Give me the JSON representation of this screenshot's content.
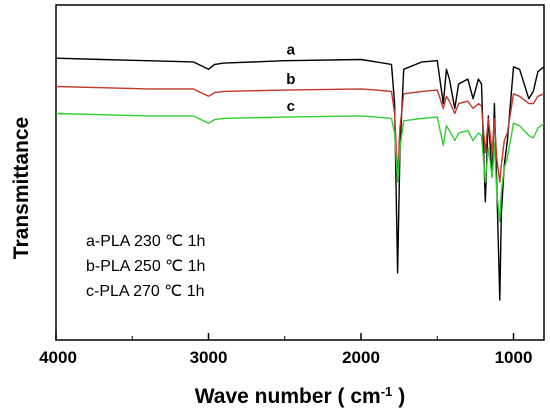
{
  "chart_data": {
    "type": "line",
    "xlabel": "Wave number (   cm",
    "xlabel_sup": "-1",
    "xlabel_close": ")",
    "ylabel": "Transmittance",
    "xlim": [
      4000,
      800
    ],
    "x_reversed": true,
    "xticks": [
      4000,
      3000,
      2000,
      1000
    ],
    "xtick_labels": [
      "4000",
      "3000",
      "2000",
      "1000"
    ],
    "grid": false,
    "legend_placement": "bottom-left",
    "legend": [
      {
        "text": "a-PLA 230 ℃ 1h"
      },
      {
        "text": "b-PLA 250 ℃ 1h"
      },
      {
        "text": "c-PLA 270 ℃ 1h"
      }
    ],
    "series": [
      {
        "name": "a",
        "color": "#000000",
        "points": [
          [
            4000,
            0.115
          ],
          [
            3700,
            0.12
          ],
          [
            3400,
            0.125
          ],
          [
            3100,
            0.13
          ],
          [
            3000,
            0.16
          ],
          [
            2960,
            0.14
          ],
          [
            2900,
            0.135
          ],
          [
            2500,
            0.125
          ],
          [
            2000,
            0.12
          ],
          [
            1900,
            0.13
          ],
          [
            1800,
            0.14
          ],
          [
            1780,
            0.3
          ],
          [
            1760,
            0.99
          ],
          [
            1745,
            0.5
          ],
          [
            1720,
            0.16
          ],
          [
            1600,
            0.13
          ],
          [
            1500,
            0.125
          ],
          [
            1460,
            0.3
          ],
          [
            1440,
            0.16
          ],
          [
            1420,
            0.2
          ],
          [
            1385,
            0.32
          ],
          [
            1360,
            0.22
          ],
          [
            1300,
            0.2
          ],
          [
            1265,
            0.28
          ],
          [
            1230,
            0.2
          ],
          [
            1210,
            0.22
          ],
          [
            1185,
            0.7
          ],
          [
            1165,
            0.35
          ],
          [
            1140,
            0.6
          ],
          [
            1125,
            0.3
          ],
          [
            1110,
            0.62
          ],
          [
            1090,
            1.1
          ],
          [
            1080,
            0.75
          ],
          [
            1060,
            0.55
          ],
          [
            1040,
            0.45
          ],
          [
            1000,
            0.15
          ],
          [
            960,
            0.16
          ],
          [
            900,
            0.28
          ],
          [
            870,
            0.25
          ],
          [
            840,
            0.17
          ],
          [
            800,
            0.15
          ]
        ]
      },
      {
        "name": "b",
        "color": "#c0392b",
        "points": [
          [
            4000,
            0.23
          ],
          [
            3700,
            0.235
          ],
          [
            3400,
            0.24
          ],
          [
            3100,
            0.24
          ],
          [
            3000,
            0.27
          ],
          [
            2960,
            0.255
          ],
          [
            2900,
            0.25
          ],
          [
            2500,
            0.245
          ],
          [
            2000,
            0.24
          ],
          [
            1900,
            0.245
          ],
          [
            1800,
            0.25
          ],
          [
            1780,
            0.34
          ],
          [
            1760,
            0.6
          ],
          [
            1745,
            0.4
          ],
          [
            1720,
            0.26
          ],
          [
            1600,
            0.25
          ],
          [
            1500,
            0.245
          ],
          [
            1460,
            0.32
          ],
          [
            1440,
            0.27
          ],
          [
            1420,
            0.29
          ],
          [
            1385,
            0.34
          ],
          [
            1360,
            0.3
          ],
          [
            1300,
            0.29
          ],
          [
            1265,
            0.32
          ],
          [
            1230,
            0.3
          ],
          [
            1210,
            0.31
          ],
          [
            1185,
            0.5
          ],
          [
            1165,
            0.36
          ],
          [
            1140,
            0.5
          ],
          [
            1125,
            0.36
          ],
          [
            1110,
            0.52
          ],
          [
            1090,
            0.62
          ],
          [
            1080,
            0.55
          ],
          [
            1060,
            0.45
          ],
          [
            1040,
            0.42
          ],
          [
            1000,
            0.26
          ],
          [
            960,
            0.27
          ],
          [
            900,
            0.3
          ],
          [
            870,
            0.3
          ],
          [
            840,
            0.27
          ],
          [
            800,
            0.26
          ]
        ]
      },
      {
        "name": "c",
        "color": "#33cc33",
        "points": [
          [
            4000,
            0.34
          ],
          [
            3700,
            0.345
          ],
          [
            3400,
            0.35
          ],
          [
            3100,
            0.35
          ],
          [
            3000,
            0.38
          ],
          [
            2960,
            0.365
          ],
          [
            2900,
            0.36
          ],
          [
            2500,
            0.355
          ],
          [
            2000,
            0.35
          ],
          [
            1900,
            0.355
          ],
          [
            1800,
            0.36
          ],
          [
            1780,
            0.42
          ],
          [
            1760,
            0.62
          ],
          [
            1745,
            0.48
          ],
          [
            1720,
            0.37
          ],
          [
            1600,
            0.36
          ],
          [
            1500,
            0.355
          ],
          [
            1460,
            0.47
          ],
          [
            1440,
            0.39
          ],
          [
            1420,
            0.41
          ],
          [
            1385,
            0.45
          ],
          [
            1360,
            0.42
          ],
          [
            1300,
            0.41
          ],
          [
            1265,
            0.45
          ],
          [
            1230,
            0.42
          ],
          [
            1210,
            0.43
          ],
          [
            1185,
            0.62
          ],
          [
            1165,
            0.48
          ],
          [
            1140,
            0.6
          ],
          [
            1125,
            0.46
          ],
          [
            1110,
            0.66
          ],
          [
            1090,
            0.78
          ],
          [
            1080,
            0.66
          ],
          [
            1060,
            0.56
          ],
          [
            1040,
            0.52
          ],
          [
            1000,
            0.38
          ],
          [
            960,
            0.39
          ],
          [
            900,
            0.43
          ],
          [
            870,
            0.44
          ],
          [
            840,
            0.4
          ],
          [
            800,
            0.38
          ]
        ]
      }
    ]
  }
}
